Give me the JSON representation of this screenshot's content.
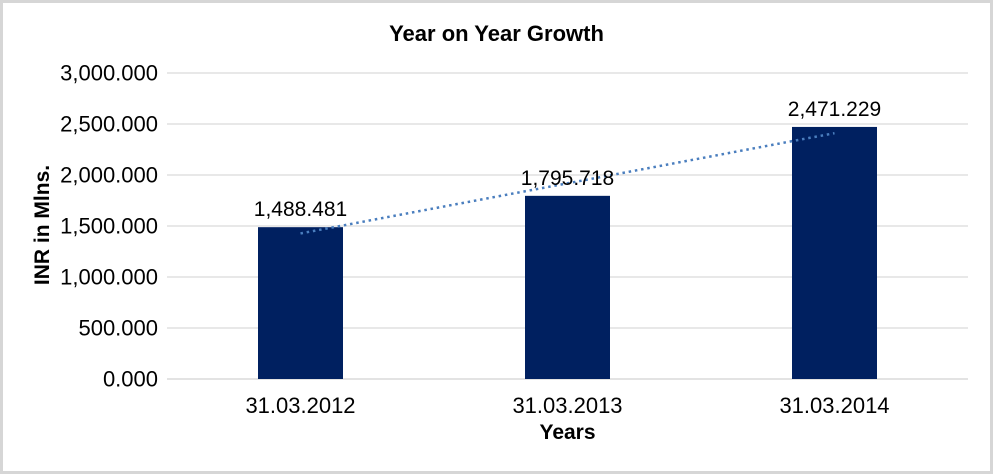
{
  "chart_data": {
    "type": "bar",
    "title": "Year on Year Growth",
    "xlabel": "Years",
    "ylabel": "INR in Mlns.",
    "categories": [
      "31.03.2012",
      "31.03.2013",
      "31.03.2014"
    ],
    "values": [
      1488.481,
      1795.718,
      2471.229
    ],
    "data_labels": [
      "1,488.481",
      "1,795.718",
      "2,471.229"
    ],
    "ylim": [
      0,
      3000
    ],
    "yticks": [
      {
        "value": 0,
        "label": "0.000"
      },
      {
        "value": 500,
        "label": "500.000"
      },
      {
        "value": 1000,
        "label": "1,000.000"
      },
      {
        "value": 1500,
        "label": "1,500.000"
      },
      {
        "value": 2000,
        "label": "2,000.000"
      },
      {
        "value": 2500,
        "label": "2,500.000"
      },
      {
        "value": 3000,
        "label": "3,000.000"
      }
    ],
    "grid": true,
    "legend": "none",
    "trendline": {
      "style": "dotted",
      "start_value": 1427.1,
      "end_value": 2409.9
    },
    "colors": {
      "bar": "#002060",
      "trendline": "#4A7EBE",
      "gridline": "#D9D9D9",
      "axis_line": "#D2D2D2",
      "text": "#000000",
      "frame_border": "#D6D6D6"
    }
  }
}
